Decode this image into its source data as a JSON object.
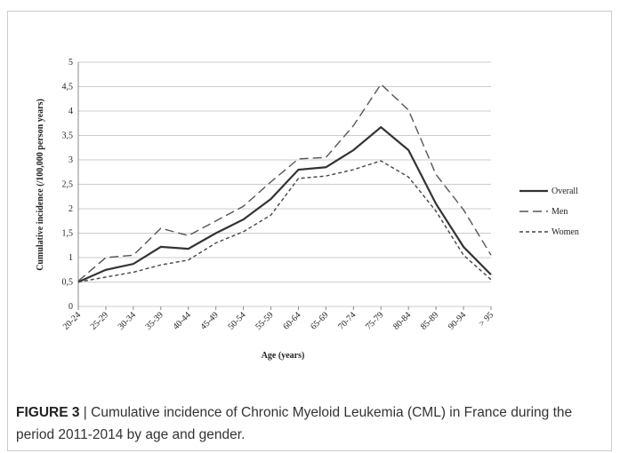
{
  "chart_data": {
    "type": "line",
    "y_label": "Cumulative incidence (/100,000 person years)",
    "x_label": "Age (years)",
    "categories": [
      "20-24",
      "25-29",
      "30-34",
      "35-39",
      "40-44",
      "45-49",
      "50-54",
      "55-59",
      "60-64",
      "65-69",
      "70-74",
      "75-79",
      "80-84",
      "85-89",
      "90-94",
      "> 95"
    ],
    "series": [
      {
        "name": "Overall",
        "color": "#333333",
        "dash": "solid",
        "values": [
          0.5,
          0.75,
          0.87,
          1.22,
          1.18,
          1.5,
          1.78,
          2.2,
          2.8,
          2.85,
          3.2,
          3.67,
          3.2,
          2.1,
          1.22,
          0.65
        ]
      },
      {
        "name": "Men",
        "color": "#555555",
        "dash": "long",
        "values": [
          0.52,
          1.0,
          1.05,
          1.6,
          1.45,
          1.75,
          2.05,
          2.55,
          3.02,
          3.05,
          3.7,
          4.55,
          4.02,
          2.7,
          1.98,
          1.05
        ]
      },
      {
        "name": "Women",
        "color": "#444444",
        "dash": "short",
        "values": [
          0.5,
          0.6,
          0.7,
          0.85,
          0.95,
          1.3,
          1.53,
          1.87,
          2.62,
          2.67,
          2.8,
          2.98,
          2.65,
          1.95,
          1.05,
          0.55
        ]
      }
    ],
    "ylim": [
      0,
      5
    ],
    "yticks": [
      0,
      {
        "value": 0.5,
        "label": "0,5"
      },
      1,
      {
        "value": 1.5,
        "label": "1,5"
      },
      2,
      {
        "value": 2.5,
        "label": "2,5"
      },
      3,
      {
        "value": 3.5,
        "label": "3,5"
      },
      4,
      {
        "value": 4.5,
        "label": "4,5"
      },
      5
    ],
    "grid": true,
    "legend": "right"
  },
  "caption": {
    "label": "FIGURE 3",
    "text": "| Cumulative incidence of Chronic Myeloid Leukemia (CML) in France during the period 2011-2014 by age and gender."
  }
}
